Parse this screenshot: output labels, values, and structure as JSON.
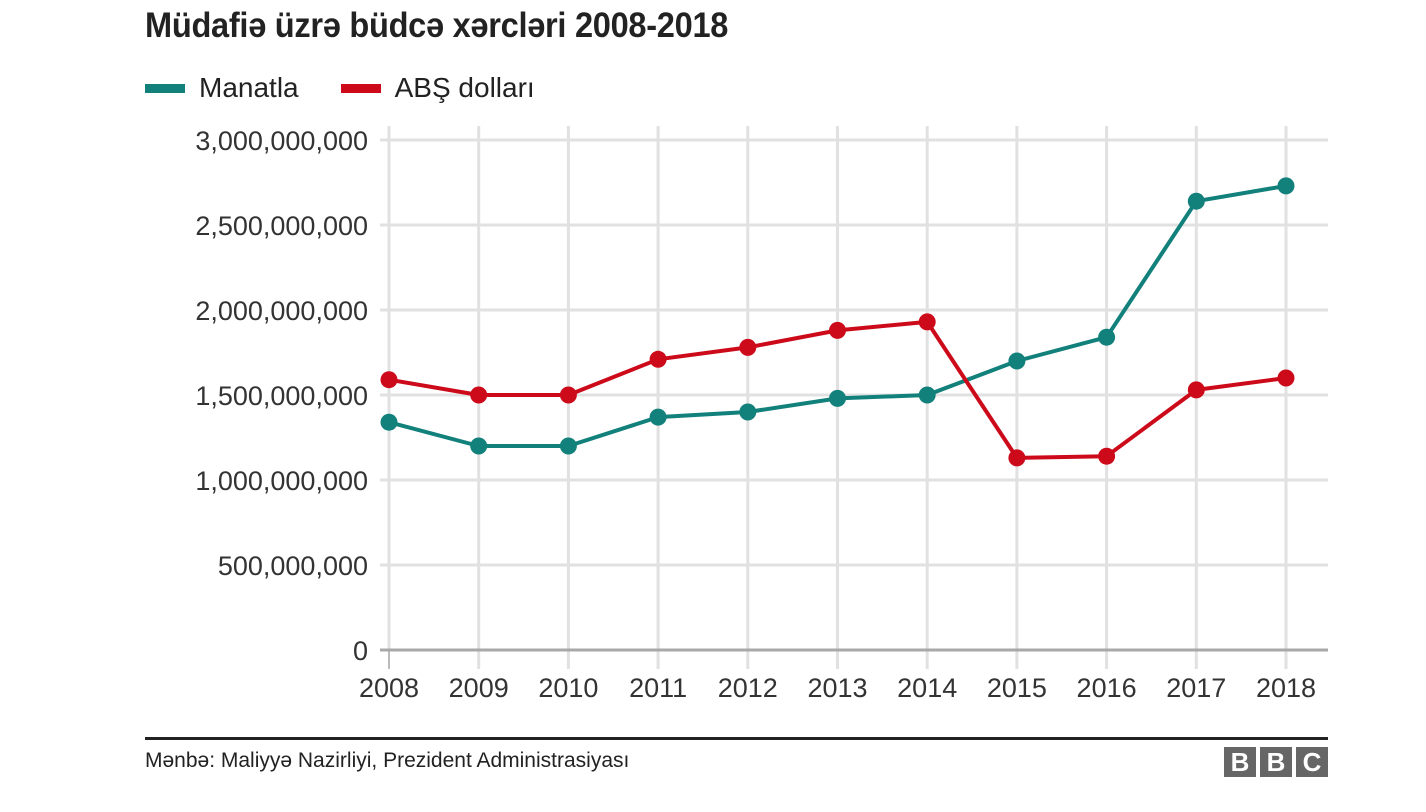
{
  "chart_data": {
    "type": "line",
    "title": "Müdafiə üzrə büdcə xərcləri 2008-2018",
    "xlabel": "",
    "ylabel": "",
    "x": [
      "2008",
      "2009",
      "2010",
      "2011",
      "2012",
      "2013",
      "2014",
      "2015",
      "2016",
      "2017",
      "2018"
    ],
    "ylim": [
      0,
      3000000000
    ],
    "yticks": [
      0,
      500000000,
      1000000000,
      1500000000,
      2000000000,
      2500000000,
      3000000000
    ],
    "ytick_labels": [
      "0",
      "500,000,000",
      "1,000,000,000",
      "1,500,000,000",
      "2,000,000,000",
      "2,500,000,000",
      "3,000,000,000"
    ],
    "grid": true,
    "legend_position": "top-left",
    "series": [
      {
        "name": "Manatla",
        "color": "#12807b",
        "values": [
          1340000000,
          1200000000,
          1200000000,
          1370000000,
          1400000000,
          1480000000,
          1500000000,
          1700000000,
          1840000000,
          2640000000,
          2730000000
        ]
      },
      {
        "name": "ABŞ dolları",
        "color": "#cc0a1a",
        "values": [
          1590000000,
          1500000000,
          1500000000,
          1710000000,
          1780000000,
          1880000000,
          1930000000,
          1130000000,
          1140000000,
          1530000000,
          1600000000
        ]
      }
    ]
  },
  "header": {
    "title": "Müdafiə üzrə büdcə xərcləri 2008-2018"
  },
  "legend": [
    {
      "label": "Manatla",
      "color": "#12807b"
    },
    {
      "label": "ABŞ dolları",
      "color": "#cc0a1a"
    }
  ],
  "footer": {
    "source": "Mənbə: Maliyyə Nazirliyi, Prezident Administrasiyası",
    "logo_letters": [
      "B",
      "B",
      "C"
    ]
  }
}
